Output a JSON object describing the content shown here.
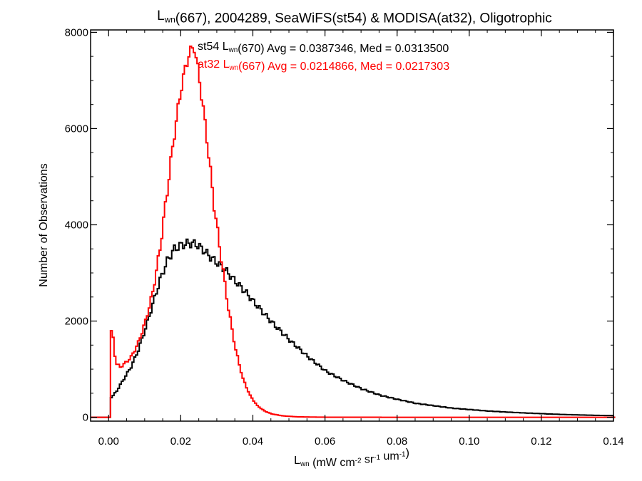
{
  "chart_data": {
    "type": "line",
    "title": {
      "parts": [
        "L",
        "wn",
        "(667), 2004289, SeaWiFS(st54) & MODISA(at32), Oligotrophic"
      ]
    },
    "xlabel": {
      "parts": [
        "L",
        "wn",
        " (mW cm",
        "-2",
        " sr",
        "-1",
        " um",
        "-1",
        ")"
      ]
    },
    "ylabel": "Number of Observations",
    "xlim": [
      -0.005,
      0.14
    ],
    "ylim": [
      -80,
      8050
    ],
    "xticks": [
      0.0,
      0.02,
      0.04,
      0.06,
      0.08,
      0.1,
      0.12,
      0.14
    ],
    "xtick_labels": [
      "0.00",
      "0.02",
      "0.04",
      "0.06",
      "0.08",
      "0.10",
      "0.12",
      "0.14"
    ],
    "yticks": [
      0,
      2000,
      4000,
      6000,
      8000
    ],
    "ytick_labels": [
      "0",
      "2000",
      "4000",
      "6000",
      "8000"
    ],
    "grid": false,
    "series": [
      {
        "name": "st54",
        "color": "#000000",
        "annotation": {
          "parts": [
            "st54 L",
            "wn",
            "(670) Avg = 0.0387346, Med = 0.0313500"
          ]
        },
        "x": [
          -0.005,
          0,
          0.0002,
          0.001,
          0.002,
          0.004,
          0.006,
          0.008,
          0.01,
          0.012,
          0.014,
          0.016,
          0.018,
          0.02,
          0.022,
          0.024,
          0.026,
          0.028,
          0.03,
          0.032,
          0.034,
          0.036,
          0.038,
          0.04,
          0.042,
          0.044,
          0.046,
          0.048,
          0.05,
          0.055,
          0.06,
          0.065,
          0.07,
          0.075,
          0.08,
          0.085,
          0.09,
          0.095,
          0.1,
          0.105,
          0.11,
          0.115,
          0.12,
          0.125,
          0.13,
          0.135,
          0.14
        ],
        "y": [
          0,
          0,
          400,
          450,
          550,
          800,
          1050,
          1400,
          1850,
          2350,
          2850,
          3250,
          3500,
          3580,
          3620,
          3600,
          3480,
          3330,
          3200,
          3070,
          2900,
          2740,
          2580,
          2400,
          2230,
          2060,
          1900,
          1750,
          1600,
          1260,
          960,
          760,
          590,
          460,
          370,
          290,
          240,
          190,
          160,
          130,
          110,
          90,
          75,
          60,
          50,
          40,
          35
        ]
      },
      {
        "name": "at32",
        "color": "#ff0000",
        "annotation": {
          "parts": [
            "at32 L",
            "wn",
            "(667) Avg = 0.0214866, Med = 0.0217303"
          ]
        },
        "x": [
          -0.005,
          0,
          0.0002,
          0.0006,
          0.001,
          0.0015,
          0.002,
          0.003,
          0.004,
          0.006,
          0.008,
          0.01,
          0.012,
          0.014,
          0.016,
          0.018,
          0.02,
          0.022,
          0.0235,
          0.025,
          0.027,
          0.029,
          0.031,
          0.033,
          0.035,
          0.037,
          0.039,
          0.041,
          0.043,
          0.045,
          0.048,
          0.052,
          0.056,
          0.06,
          0.07,
          0.08,
          0.1,
          0.14
        ],
        "y": [
          0,
          0,
          1400,
          1880,
          1650,
          1300,
          1100,
          1050,
          1100,
          1250,
          1550,
          2000,
          2600,
          3500,
          4700,
          5900,
          6900,
          7550,
          7700,
          7000,
          5800,
          4400,
          3300,
          2250,
          1400,
          800,
          450,
          240,
          130,
          70,
          30,
          10,
          5,
          2,
          1,
          0,
          0,
          0
        ]
      }
    ]
  }
}
